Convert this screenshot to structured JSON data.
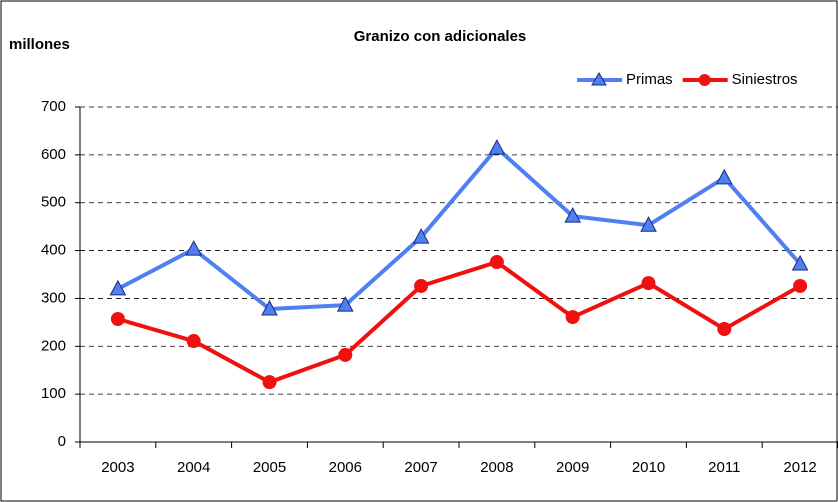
{
  "chart_data": {
    "type": "line",
    "title": "Granizo con adicionales",
    "y_label": "millones",
    "categories": [
      "2003",
      "2004",
      "2005",
      "2006",
      "2007",
      "2008",
      "2009",
      "2010",
      "2011",
      "2012"
    ],
    "series": [
      {
        "name": "Primas",
        "color": "#4f7ff0",
        "marker": "triangle",
        "values": [
          320,
          403,
          278,
          286,
          428,
          614,
          472,
          453,
          552,
          372
        ]
      },
      {
        "name": "Siniestros",
        "color": "#f01010",
        "marker": "circle",
        "values": [
          257,
          211,
          125,
          182,
          326,
          376,
          261,
          332,
          236,
          326
        ]
      }
    ],
    "ylim": [
      0,
      700
    ],
    "yticks": [
      0,
      100,
      200,
      300,
      400,
      500,
      600,
      700
    ],
    "grid": true,
    "legend": "top-right"
  }
}
